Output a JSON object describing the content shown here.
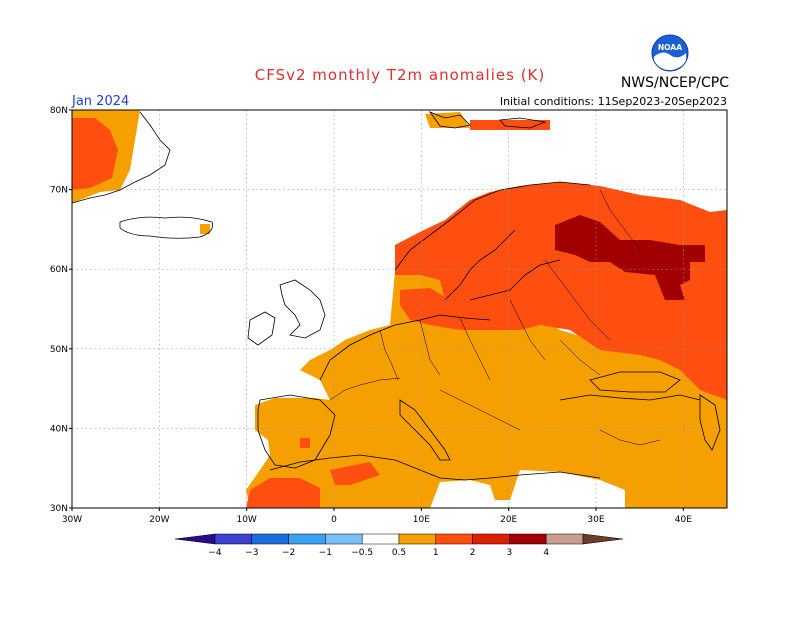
{
  "header": {
    "title": "CFSv2 monthly T2m anomalies (K)",
    "month": "Jan 2024",
    "initial_conditions": "Initial conditions: 11Sep2023-20Sep2023",
    "agency": "NWS/NCEP/CPC",
    "logo_text": "NOAA"
  },
  "colors": {
    "title": "#e03030",
    "month": "#2040d0",
    "anomaly_0_5_to_1": "#f5a000",
    "anomaly_1_to_2": "#ff4f10",
    "anomaly_2_to_3": "#dd2000",
    "anomaly_3_to_4": "#a00000",
    "grid": "#999999"
  },
  "map": {
    "region": "Europe",
    "lon_range": [
      -30,
      45
    ],
    "lat_range": [
      30,
      80
    ],
    "lat_labels": [
      "80N",
      "70N",
      "60N",
      "50N",
      "40N",
      "30N"
    ],
    "lon_labels": [
      "30W",
      "20W",
      "10W",
      "0",
      "10E",
      "20E",
      "30E",
      "40E"
    ]
  },
  "legend": {
    "colors": [
      "#2a0a8a",
      "#3c40d0",
      "#1c6ee0",
      "#3ca0f0",
      "#78c0f8",
      "#ffffff",
      "#f5a000",
      "#ff4f10",
      "#dd2000",
      "#a00000",
      "#c89e94",
      "#6b3c2c"
    ],
    "labels": [
      "−4",
      "−3",
      "−2",
      "−1",
      "−0.5",
      "0.5",
      "1",
      "2",
      "3",
      "4"
    ]
  }
}
